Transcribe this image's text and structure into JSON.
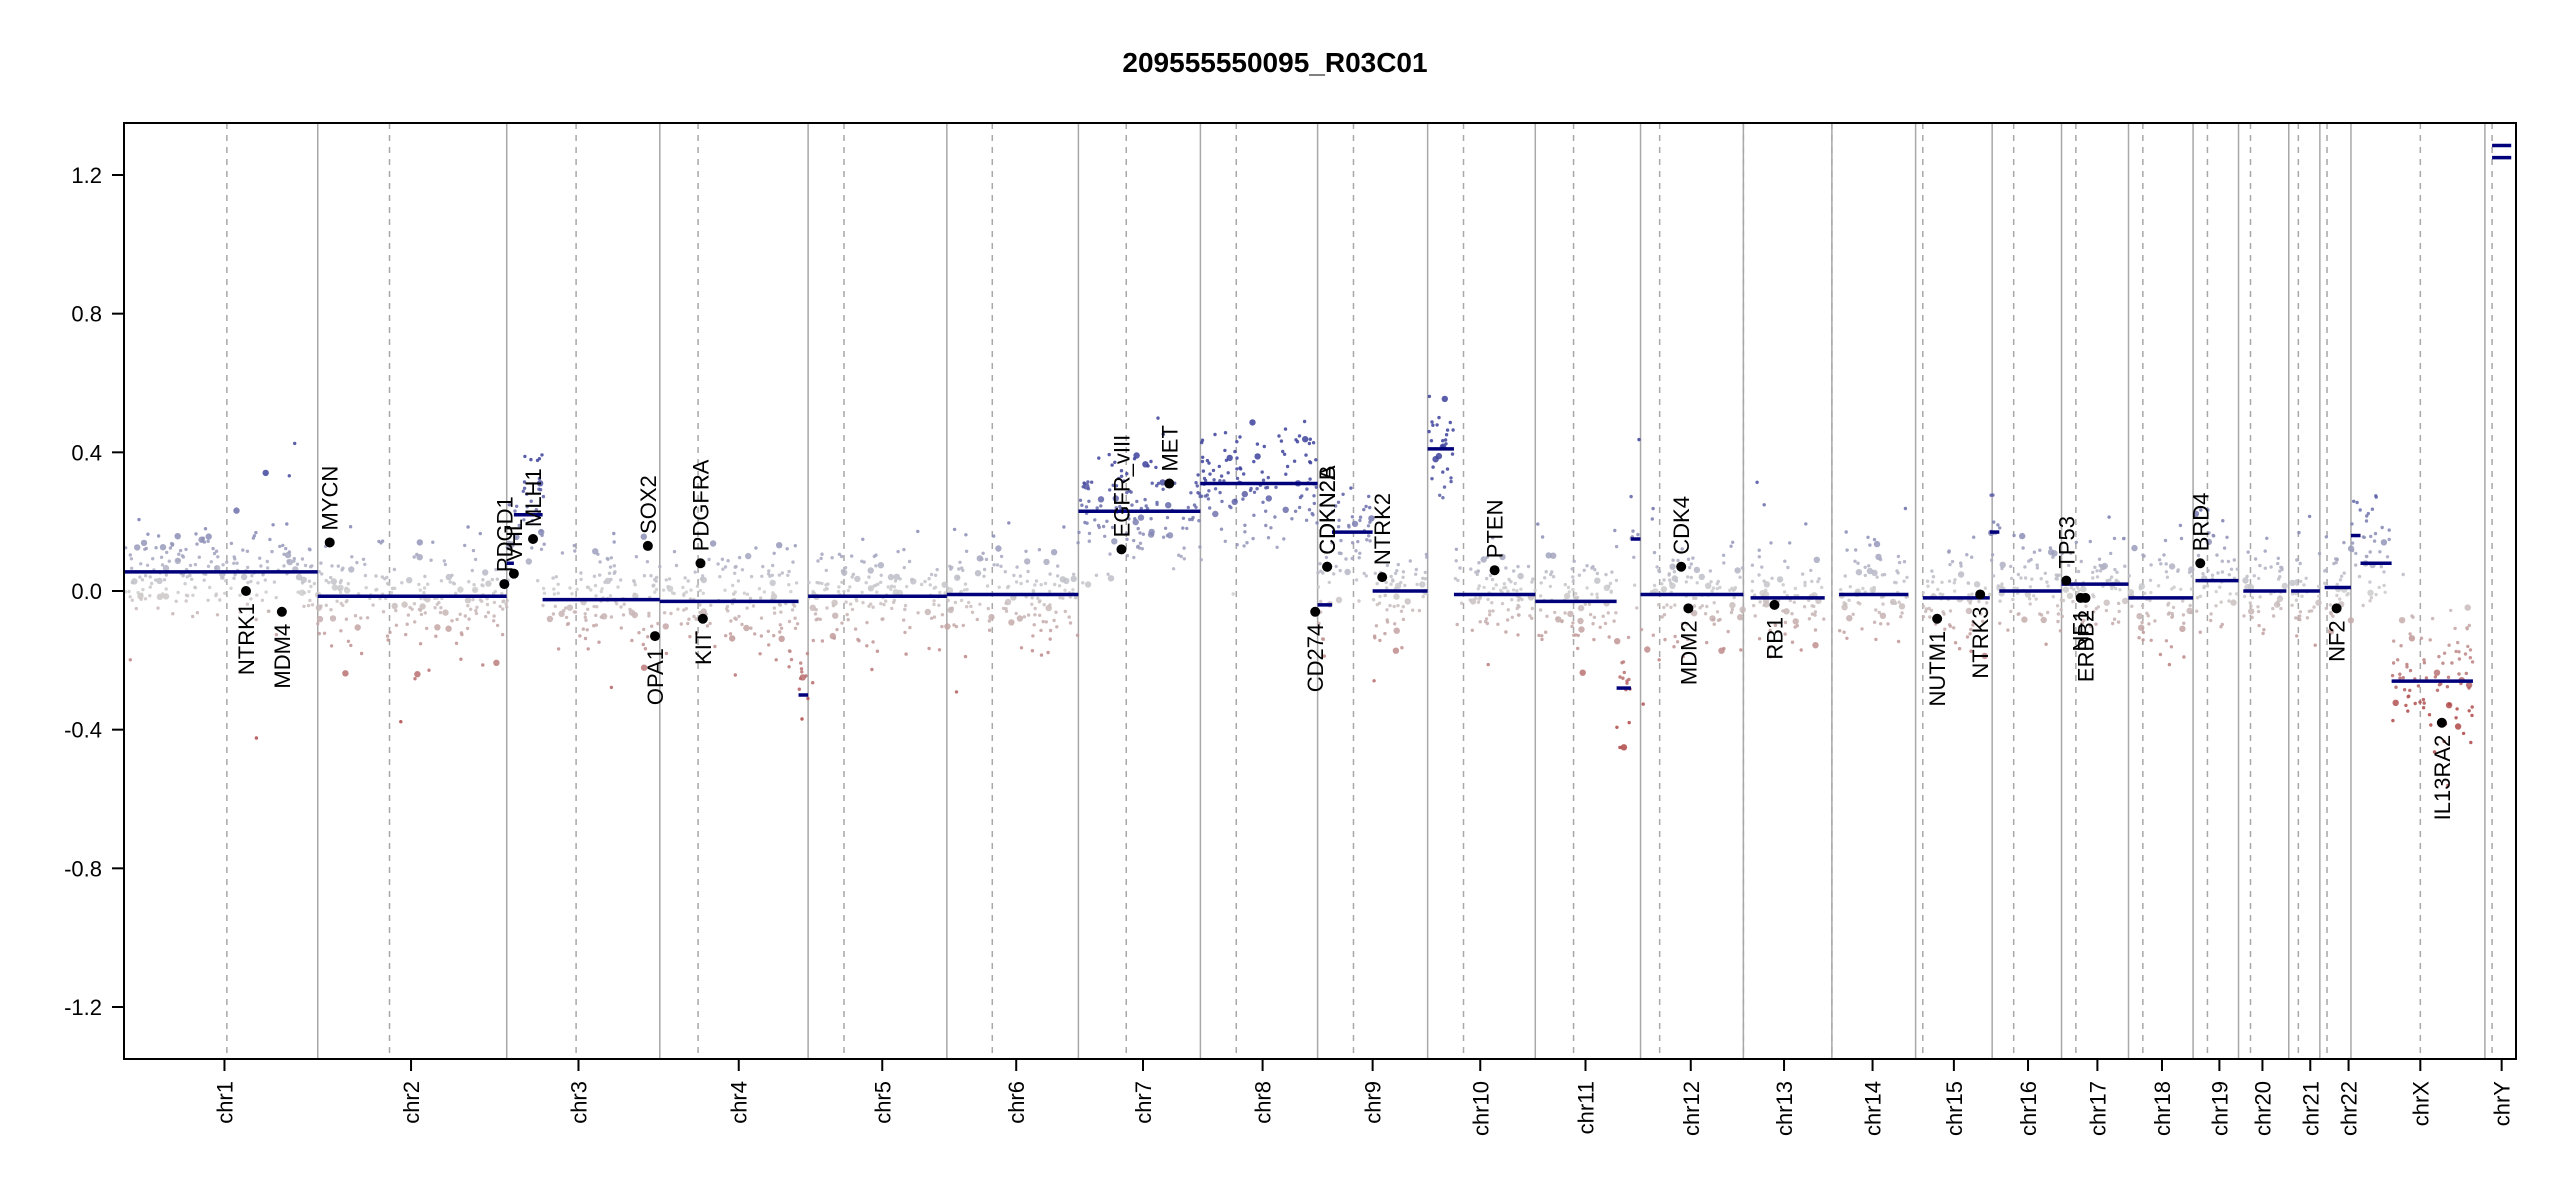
{
  "chart_data": {
    "type": "scatter",
    "title": "209555550095_R03C01",
    "xlabel": "",
    "ylabel": "",
    "ylim": [
      -1.35,
      1.35
    ],
    "yticks": [
      -1.2,
      -0.8,
      -0.4,
      0.0,
      0.4,
      0.8,
      1.2
    ],
    "ytick_labels": [
      "-1.2",
      "-0.8",
      "-0.4",
      "0.0",
      "0.4",
      "0.8",
      "1.2"
    ],
    "grid": false,
    "colors": {
      "gain": "#3a3f9a",
      "loss": "#a33a3a",
      "neutral": "#cfcfcf",
      "segment": "#00007a",
      "gene": "#000000",
      "boundary": "#a8a8a8"
    },
    "chromosomes": [
      {
        "name": "chr1",
        "start": 0.0,
        "end": 0.081,
        "mid_frac": 0.042
      },
      {
        "name": "chr2",
        "start": 0.081,
        "end": 0.16,
        "mid_frac": 0.12
      },
      {
        "name": "chr3",
        "start": 0.16,
        "end": 0.224,
        "mid_frac": 0.19
      },
      {
        "name": "chr4",
        "start": 0.224,
        "end": 0.286,
        "mid_frac": 0.257
      },
      {
        "name": "chr5",
        "start": 0.286,
        "end": 0.344,
        "mid_frac": 0.317
      },
      {
        "name": "chr6",
        "start": 0.344,
        "end": 0.399,
        "mid_frac": 0.373
      },
      {
        "name": "chr7",
        "start": 0.399,
        "end": 0.45,
        "mid_frac": 0.426
      },
      {
        "name": "chr8",
        "start": 0.45,
        "end": 0.499,
        "mid_frac": 0.476
      },
      {
        "name": "chr9",
        "start": 0.499,
        "end": 0.545,
        "mid_frac": 0.522
      },
      {
        "name": "chr10",
        "start": 0.545,
        "end": 0.59,
        "mid_frac": 0.567
      },
      {
        "name": "chr11",
        "start": 0.59,
        "end": 0.634,
        "mid_frac": 0.611
      },
      {
        "name": "chr12",
        "start": 0.634,
        "end": 0.677,
        "mid_frac": 0.655
      },
      {
        "name": "chr13",
        "start": 0.677,
        "end": 0.714,
        "mid_frac": 0.694
      },
      {
        "name": "chr14",
        "start": 0.714,
        "end": 0.749,
        "mid_frac": 0.731
      },
      {
        "name": "chr15",
        "start": 0.749,
        "end": 0.781,
        "mid_frac": 0.765
      },
      {
        "name": "chr16",
        "start": 0.781,
        "end": 0.81,
        "mid_frac": 0.796
      },
      {
        "name": "chr17",
        "start": 0.81,
        "end": 0.838,
        "mid_frac": 0.825
      },
      {
        "name": "chr18",
        "start": 0.838,
        "end": 0.865,
        "mid_frac": 0.852
      },
      {
        "name": "chr19",
        "start": 0.865,
        "end": 0.884,
        "mid_frac": 0.876
      },
      {
        "name": "chr20",
        "start": 0.884,
        "end": 0.905,
        "mid_frac": 0.894
      },
      {
        "name": "chr21",
        "start": 0.905,
        "end": 0.918,
        "mid_frac": 0.914
      },
      {
        "name": "chr22",
        "start": 0.918,
        "end": 0.931,
        "mid_frac": 0.93
      },
      {
        "name": "chrX",
        "start": 0.931,
        "end": 0.987,
        "mid_frac": 0.96
      },
      {
        "name": "chrY",
        "start": 0.987,
        "end": 1.0,
        "mid_frac": 0.994
      }
    ],
    "centromeres": [
      0.043,
      0.111,
      0.189,
      0.24,
      0.301,
      0.363,
      0.419,
      0.465,
      0.514,
      0.56,
      0.606,
      0.642,
      0.677,
      0.714,
      0.752,
      0.79,
      0.816,
      0.844,
      0.871,
      0.889,
      0.909,
      0.921,
      0.96,
      0.99
    ],
    "segments": [
      {
        "x0": 0.0,
        "x1": 0.081,
        "y": 0.055
      },
      {
        "x0": 0.081,
        "x1": 0.16,
        "y": -0.015
      },
      {
        "x0": 0.16,
        "x1": 0.163,
        "y": 0.08
      },
      {
        "x0": 0.163,
        "x1": 0.175,
        "y": 0.22
      },
      {
        "x0": 0.175,
        "x1": 0.224,
        "y": -0.025
      },
      {
        "x0": 0.224,
        "x1": 0.282,
        "y": -0.03
      },
      {
        "x0": 0.282,
        "x1": 0.286,
        "y": -0.3
      },
      {
        "x0": 0.286,
        "x1": 0.344,
        "y": -0.015
      },
      {
        "x0": 0.344,
        "x1": 0.399,
        "y": -0.01
      },
      {
        "x0": 0.399,
        "x1": 0.45,
        "y": 0.23
      },
      {
        "x0": 0.45,
        "x1": 0.499,
        "y": 0.31
      },
      {
        "x0": 0.499,
        "x1": 0.505,
        "y": -0.04
      },
      {
        "x0": 0.505,
        "x1": 0.522,
        "y": 0.17
      },
      {
        "x0": 0.522,
        "x1": 0.545,
        "y": 0.0
      },
      {
        "x0": 0.545,
        "x1": 0.556,
        "y": 0.41
      },
      {
        "x0": 0.556,
        "x1": 0.59,
        "y": -0.01
      },
      {
        "x0": 0.59,
        "x1": 0.624,
        "y": -0.03
      },
      {
        "x0": 0.624,
        "x1": 0.63,
        "y": -0.28
      },
      {
        "x0": 0.63,
        "x1": 0.634,
        "y": 0.15
      },
      {
        "x0": 0.634,
        "x1": 0.677,
        "y": -0.01
      },
      {
        "x0": 0.68,
        "x1": 0.711,
        "y": -0.02
      },
      {
        "x0": 0.717,
        "x1": 0.746,
        "y": -0.01
      },
      {
        "x0": 0.752,
        "x1": 0.78,
        "y": -0.02
      },
      {
        "x0": 0.78,
        "x1": 0.784,
        "y": 0.17
      },
      {
        "x0": 0.784,
        "x1": 0.81,
        "y": 0.0
      },
      {
        "x0": 0.81,
        "x1": 0.838,
        "y": 0.02
      },
      {
        "x0": 0.838,
        "x1": 0.865,
        "y": -0.02
      },
      {
        "x0": 0.866,
        "x1": 0.884,
        "y": 0.03
      },
      {
        "x0": 0.886,
        "x1": 0.904,
        "y": 0.0
      },
      {
        "x0": 0.906,
        "x1": 0.918,
        "y": 0.0
      },
      {
        "x0": 0.92,
        "x1": 0.931,
        "y": 0.01
      },
      {
        "x0": 0.931,
        "x1": 0.935,
        "y": 0.16
      },
      {
        "x0": 0.935,
        "x1": 0.948,
        "y": 0.08
      },
      {
        "x0": 0.948,
        "x1": 0.982,
        "y": -0.26
      },
      {
        "x0": 0.99,
        "x1": 0.998,
        "y": 1.285
      },
      {
        "x0": 0.99,
        "x1": 0.998,
        "y": 1.25
      }
    ],
    "genes": [
      {
        "name": "NTRK1",
        "x": 0.051,
        "y": 0.0,
        "label_side": "below"
      },
      {
        "name": "MDM4",
        "x": 0.066,
        "y": -0.06,
        "label_side": "below"
      },
      {
        "name": "MYCN",
        "x": 0.086,
        "y": 0.14,
        "label_side": "above"
      },
      {
        "name": "PDGD1",
        "x": 0.159,
        "y": 0.02,
        "label_side": "above"
      },
      {
        "name": "VHL",
        "x": 0.163,
        "y": 0.05,
        "label_side": "above"
      },
      {
        "name": "MLH1",
        "x": 0.171,
        "y": 0.15,
        "label_side": "above"
      },
      {
        "name": "SOX2",
        "x": 0.219,
        "y": 0.13,
        "label_side": "above"
      },
      {
        "name": "OPA1",
        "x": 0.222,
        "y": -0.13,
        "label_side": "below"
      },
      {
        "name": "PDGFRA",
        "x": 0.241,
        "y": 0.08,
        "label_side": "above"
      },
      {
        "name": "KIT",
        "x": 0.242,
        "y": -0.08,
        "label_side": "below"
      },
      {
        "name": "EGFR_vIII",
        "x": 0.417,
        "y": 0.12,
        "label_side": "above"
      },
      {
        "name": "MET",
        "x": 0.437,
        "y": 0.31,
        "label_side": "above"
      },
      {
        "name": "CD274",
        "x": 0.498,
        "y": -0.06,
        "label_side": "below"
      },
      {
        "name": "CDKN2A",
        "x": 0.503,
        "y": 0.07,
        "label_side": "above"
      },
      {
        "name": "CDKN2B",
        "x": 0.503,
        "y": 0.07,
        "label_side": "above"
      },
      {
        "name": "NTRK2",
        "x": 0.526,
        "y": 0.04,
        "label_side": "above"
      },
      {
        "name": "PTEN",
        "x": 0.573,
        "y": 0.06,
        "label_side": "above"
      },
      {
        "name": "CDK4",
        "x": 0.651,
        "y": 0.07,
        "label_side": "above"
      },
      {
        "name": "MDM2",
        "x": 0.654,
        "y": -0.05,
        "label_side": "below"
      },
      {
        "name": "RB1",
        "x": 0.69,
        "y": -0.04,
        "label_side": "below"
      },
      {
        "name": "NUTM1",
        "x": 0.758,
        "y": -0.08,
        "label_side": "below"
      },
      {
        "name": "NTRK3",
        "x": 0.776,
        "y": -0.01,
        "label_side": "below"
      },
      {
        "name": "TP53",
        "x": 0.812,
        "y": 0.03,
        "label_side": "above"
      },
      {
        "name": "NF1",
        "x": 0.818,
        "y": -0.02,
        "label_side": "below"
      },
      {
        "name": "ERBB2",
        "x": 0.82,
        "y": -0.02,
        "label_side": "below"
      },
      {
        "name": "BRD4",
        "x": 0.868,
        "y": 0.08,
        "label_side": "above"
      },
      {
        "name": "NF2",
        "x": 0.925,
        "y": -0.05,
        "label_side": "below"
      },
      {
        "name": "IL13RA2",
        "x": 0.969,
        "y": -0.38,
        "label_side": "below"
      }
    ]
  }
}
